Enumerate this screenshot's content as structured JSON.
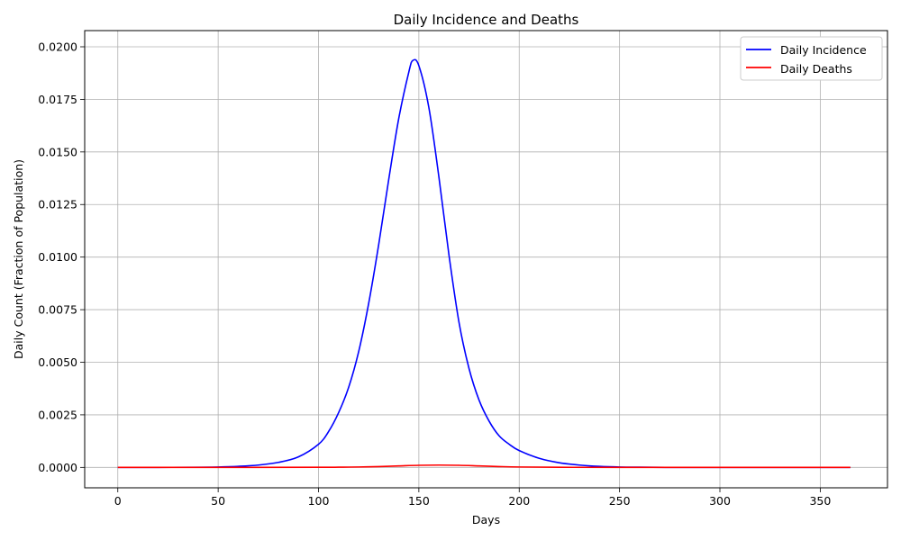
{
  "chart_data": {
    "type": "line",
    "title": "Daily Incidence and Deaths",
    "xlabel": "Days",
    "ylabel": "Daily Count (Fraction of Population)",
    "xlim": [
      -16.5,
      383.5
    ],
    "ylim": [
      -0.00097,
      0.02077
    ],
    "xticks": [
      0,
      50,
      100,
      150,
      200,
      250,
      300,
      350
    ],
    "yticks": [
      0.0,
      0.0025,
      0.005,
      0.0075,
      0.01,
      0.0125,
      0.015,
      0.0175,
      0.02
    ],
    "xtick_labels": [
      "0",
      "50",
      "100",
      "150",
      "200",
      "250",
      "300",
      "350"
    ],
    "ytick_labels": [
      "0.0000",
      "0.0025",
      "0.0050",
      "0.0075",
      "0.0100",
      "0.0125",
      "0.0150",
      "0.0175",
      "0.0200"
    ],
    "grid": true,
    "legend_position": "top-right",
    "series": [
      {
        "name": "Daily Incidence",
        "color": "#0000ff",
        "points": [
          [
            0,
            0.0
          ],
          [
            20,
            2e-06
          ],
          [
            40,
            8e-06
          ],
          [
            50,
            2e-05
          ],
          [
            60,
            5e-05
          ],
          [
            70,
            0.00011
          ],
          [
            80,
            0.00024
          ],
          [
            90,
            0.0005
          ],
          [
            100,
            0.0011
          ],
          [
            105,
            0.0017
          ],
          [
            110,
            0.0026
          ],
          [
            115,
            0.0038
          ],
          [
            120,
            0.0055
          ],
          [
            125,
            0.0078
          ],
          [
            130,
            0.0106
          ],
          [
            135,
            0.0137
          ],
          [
            140,
            0.0166
          ],
          [
            145,
            0.0188
          ],
          [
            147,
            0.01935
          ],
          [
            150,
            0.0191
          ],
          [
            155,
            0.0171
          ],
          [
            160,
            0.0138
          ],
          [
            165,
            0.0101
          ],
          [
            170,
            0.0069
          ],
          [
            175,
            0.0047
          ],
          [
            180,
            0.0032
          ],
          [
            185,
            0.0022
          ],
          [
            190,
            0.0015
          ],
          [
            195,
            0.0011
          ],
          [
            200,
            0.0008
          ],
          [
            210,
            0.00043
          ],
          [
            220,
            0.00022
          ],
          [
            230,
            0.00011
          ],
          [
            240,
            5e-05
          ],
          [
            250,
            2e-05
          ],
          [
            260,
            1e-05
          ],
          [
            280,
            0.0
          ],
          [
            300,
            0.0
          ],
          [
            330,
            0.0
          ],
          [
            365,
            0.0
          ]
        ]
      },
      {
        "name": "Daily Deaths",
        "color": "#ff0000",
        "points": [
          [
            0,
            0.0
          ],
          [
            50,
            0.0
          ],
          [
            100,
            5e-06
          ],
          [
            110,
            1e-05
          ],
          [
            120,
            2e-05
          ],
          [
            130,
            4e-05
          ],
          [
            140,
            7e-05
          ],
          [
            150,
            0.0001
          ],
          [
            160,
            0.00011
          ],
          [
            170,
            0.0001
          ],
          [
            180,
            7e-05
          ],
          [
            190,
            4e-05
          ],
          [
            200,
            2e-05
          ],
          [
            220,
            5e-06
          ],
          [
            250,
            0.0
          ],
          [
            300,
            0.0
          ],
          [
            365,
            0.0
          ]
        ]
      }
    ]
  }
}
